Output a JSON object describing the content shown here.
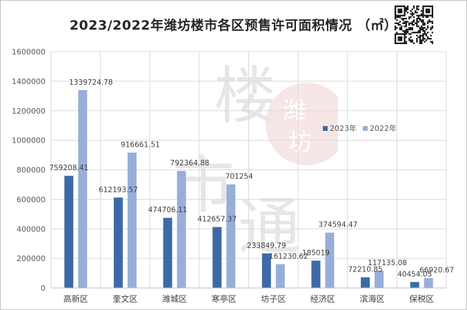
{
  "chart_data": {
    "type": "bar",
    "title": "2023/2022年潍坊楼市各区预售许可面积情况 （㎡）",
    "categories": [
      "高新区",
      "奎文区",
      "潍城区",
      "寒亭区",
      "坊子区",
      "经济区",
      "滨海区",
      "保税区"
    ],
    "series": [
      {
        "name": "2023年",
        "color": "#3d6aa6",
        "values": [
          759208.41,
          612193.57,
          474706.11,
          412657.37,
          233849.79,
          185019,
          72210.85,
          40454.05
        ],
        "labels": [
          "759208.41",
          "612193.57",
          "474706.11",
          "412657.37",
          "233849.79",
          "185019",
          "72210.85",
          "40454.05"
        ]
      },
      {
        "name": "2022年",
        "color": "#98aed8",
        "values": [
          1339724.78,
          916661.51,
          792364.88,
          701254,
          161230.62,
          374594.47,
          117135.08,
          66920.67
        ],
        "labels": [
          "1339724.78",
          "916661.51",
          "792364.88",
          "701254",
          "161230.62",
          "374594.47",
          "117135.08",
          "66920.67"
        ]
      }
    ],
    "ylim": [
      0,
      1600000
    ],
    "yticks": [
      "0",
      "200000",
      "400000",
      "600000",
      "800000",
      "1000000",
      "1200000",
      "1400000",
      "1600000"
    ],
    "grid": true,
    "legend_position": "right-middle"
  },
  "watermark": {
    "text": "楼市通",
    "seal_text": "潍坊"
  }
}
